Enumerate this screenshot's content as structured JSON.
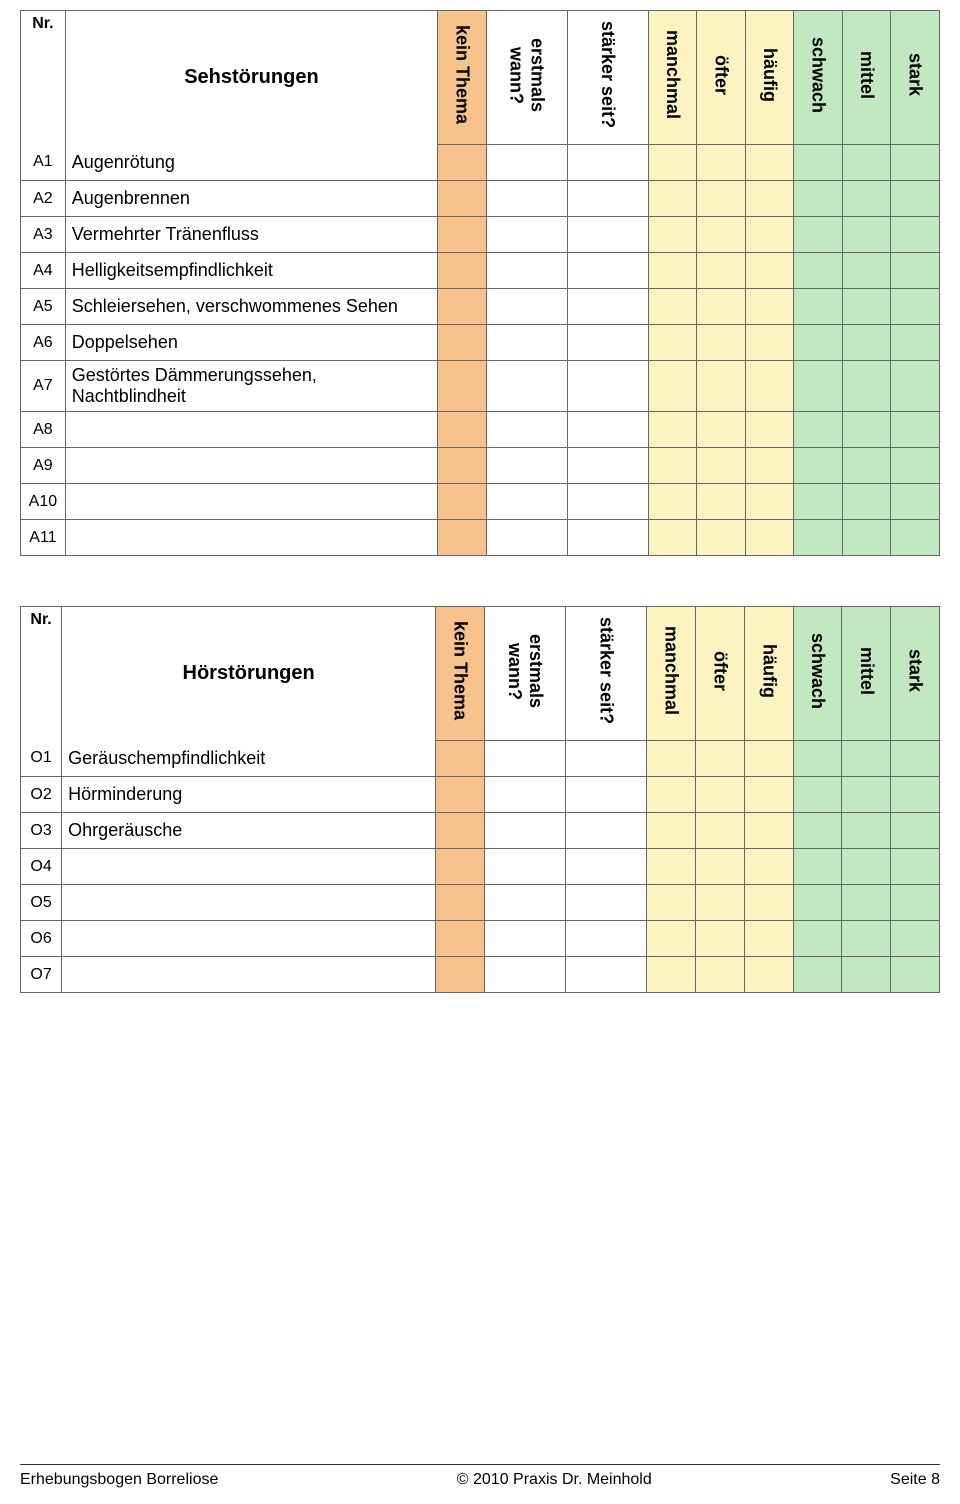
{
  "colors": {
    "orange": "#f8c28c",
    "yellow": "#fbf4c0",
    "green": "#c1e8c1",
    "border": "#666666",
    "background": "#ffffff"
  },
  "columns": {
    "nr": "Nr.",
    "kein_thema": "kein Thema",
    "erstmals": "erstmals wann?",
    "staerker": "stärker seit?",
    "manchmal": "manchmal",
    "oefter": "öfter",
    "haeufig": "häufig",
    "schwach": "schwach",
    "mittel": "mittel",
    "stark": "stark"
  },
  "tables": [
    {
      "title": "Sehstörungen",
      "rows": [
        {
          "nr": "A1",
          "label": "Augenrötung"
        },
        {
          "nr": "A2",
          "label": "Augenbrennen"
        },
        {
          "nr": "A3",
          "label": "Vermehrter Tränenfluss"
        },
        {
          "nr": "A4",
          "label": "Helligkeitsempfindlichkeit"
        },
        {
          "nr": "A5",
          "label": "Schleiersehen, verschwommenes Sehen"
        },
        {
          "nr": "A6",
          "label": "Doppelsehen"
        },
        {
          "nr": "A7",
          "label": "Gestörtes Dämmerungssehen, Nachtblindheit"
        },
        {
          "nr": "A8",
          "label": ""
        },
        {
          "nr": "A9",
          "label": ""
        },
        {
          "nr": "A10",
          "label": ""
        },
        {
          "nr": "A11",
          "label": ""
        }
      ]
    },
    {
      "title": "Hörstörungen",
      "rows": [
        {
          "nr": "O1",
          "label": "Geräuschempfindlichkeit"
        },
        {
          "nr": "O2",
          "label": "Hörminderung"
        },
        {
          "nr": "O3",
          "label": "Ohrgeräusche"
        },
        {
          "nr": "O4",
          "label": ""
        },
        {
          "nr": "O5",
          "label": ""
        },
        {
          "nr": "O6",
          "label": ""
        },
        {
          "nr": "O7",
          "label": ""
        }
      ]
    }
  ],
  "footer": {
    "left": "Erhebungsbogen Borreliose",
    "center": "© 2010 Praxis Dr. Meinhold",
    "right": "Seite 8"
  }
}
